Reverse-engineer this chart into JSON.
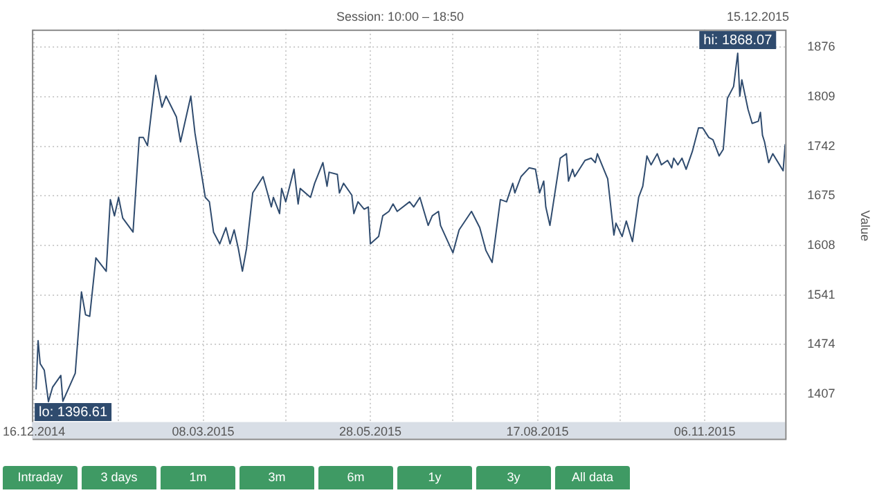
{
  "chart_data": {
    "type": "line",
    "title": "Session: 10:00 – 18:50",
    "subtitle": "15.12.2015",
    "ylabel": "Value",
    "x": [
      "2014-12-17",
      "2014-12-18",
      "2014-12-19",
      "2014-12-21",
      "2014-12-23",
      "2014-12-25",
      "2014-12-29",
      "2014-12-30",
      "2015-01-05",
      "2015-01-08",
      "2015-01-10",
      "2015-01-12",
      "2015-01-15",
      "2015-01-20",
      "2015-01-22",
      "2015-01-24",
      "2015-01-26",
      "2015-01-28",
      "2015-02-02",
      "2015-02-05",
      "2015-02-07",
      "2015-02-09",
      "2015-02-13",
      "2015-02-16",
      "2015-02-18",
      "2015-02-23",
      "2015-02-25",
      "2015-03-02",
      "2015-03-04",
      "2015-03-09",
      "2015-03-11",
      "2015-03-13",
      "2015-03-16",
      "2015-03-19",
      "2015-03-21",
      "2015-03-23",
      "2015-03-25",
      "2015-03-27",
      "2015-03-29",
      "2015-04-01",
      "2015-04-06",
      "2015-04-10",
      "2015-04-11",
      "2015-04-14",
      "2015-04-15",
      "2015-04-17",
      "2015-04-21",
      "2015-04-23",
      "2015-04-24",
      "2015-04-29",
      "2015-05-01",
      "2015-05-05",
      "2015-05-07",
      "2015-05-08",
      "2015-05-12",
      "2015-05-13",
      "2015-05-15",
      "2015-05-19",
      "2015-05-20",
      "2015-05-22",
      "2015-05-25",
      "2015-05-27",
      "2015-05-28",
      "2015-06-01",
      "2015-06-03",
      "2015-06-06",
      "2015-06-08",
      "2015-06-10",
      "2015-06-16",
      "2015-06-18",
      "2015-06-21",
      "2015-06-25",
      "2015-06-27",
      "2015-06-30",
      "2015-07-01",
      "2015-07-07",
      "2015-07-10",
      "2015-07-16",
      "2015-07-20",
      "2015-07-23",
      "2015-07-26",
      "2015-07-30",
      "2015-08-02",
      "2015-08-05",
      "2015-08-06",
      "2015-08-09",
      "2015-08-13",
      "2015-08-16",
      "2015-08-18",
      "2015-08-20",
      "2015-08-21",
      "2015-08-23",
      "2015-08-28",
      "2015-08-31",
      "2015-09-01",
      "2015-09-03",
      "2015-09-04",
      "2015-09-09",
      "2015-09-12",
      "2015-09-14",
      "2015-09-15",
      "2015-09-20",
      "2015-09-23",
      "2015-09-24",
      "2015-09-27",
      "2015-09-29",
      "2015-10-02",
      "2015-10-05",
      "2015-10-07",
      "2015-10-09",
      "2015-10-11",
      "2015-10-14",
      "2015-10-16",
      "2015-10-19",
      "2015-10-21",
      "2015-10-22",
      "2015-10-24",
      "2015-10-26",
      "2015-10-28",
      "2015-10-31",
      "2015-11-03",
      "2015-11-05",
      "2015-11-08",
      "2015-11-10",
      "2015-11-13",
      "2015-11-15",
      "2015-11-17",
      "2015-11-20",
      "2015-11-22",
      "2015-11-23",
      "2015-11-24",
      "2015-11-27",
      "2015-11-29",
      "2015-12-02",
      "2015-12-03",
      "2015-12-04",
      "2015-12-05",
      "2015-12-07",
      "2015-12-09",
      "2015-12-14",
      "2015-12-15"
    ],
    "series": [
      {
        "color": "#2f4b6e",
        "values": [
          1413,
          1479,
          1448,
          1439,
          1396.61,
          1416,
          1432,
          1397,
          1435,
          1545,
          1514,
          1512,
          1591,
          1573,
          1670,
          1648,
          1673,
          1645,
          1626,
          1754,
          1754,
          1743,
          1838,
          1795,
          1810,
          1782,
          1748,
          1810,
          1760,
          1673,
          1667,
          1626,
          1610,
          1632,
          1610,
          1629,
          1604,
          1573,
          1604,
          1679,
          1701,
          1660,
          1673,
          1651,
          1685,
          1667,
          1711,
          1664,
          1685,
          1673,
          1692,
          1720,
          1688,
          1707,
          1704,
          1679,
          1692,
          1676,
          1651,
          1667,
          1657,
          1660,
          1610,
          1620,
          1648,
          1654,
          1664,
          1654,
          1667,
          1660,
          1673,
          1635,
          1648,
          1654,
          1635,
          1598,
          1629,
          1654,
          1632,
          1601,
          1585,
          1670,
          1667,
          1692,
          1679,
          1701,
          1713,
          1711,
          1679,
          1695,
          1660,
          1635,
          1726,
          1732,
          1695,
          1711,
          1701,
          1723,
          1726,
          1720,
          1732,
          1698,
          1622,
          1638,
          1620,
          1641,
          1613,
          1673,
          1688,
          1729,
          1717,
          1732,
          1717,
          1723,
          1713,
          1726,
          1717,
          1726,
          1711,
          1735,
          1767,
          1767,
          1754,
          1751,
          1729,
          1738,
          1807,
          1823,
          1868.07,
          1810,
          1832,
          1792,
          1773,
          1776,
          1788,
          1757,
          1748,
          1720,
          1732,
          1709,
          1745
        ]
      }
    ],
    "xlim": [
      "2014-12-15",
      "2015-12-15"
    ],
    "xticks": [
      {
        "value": "2014-12-16",
        "label": "16.12.2014"
      },
      {
        "value": "2015-01-26",
        "label": null
      },
      {
        "value": "2015-03-08",
        "label": "08.03.2015"
      },
      {
        "value": "2015-04-17",
        "label": null
      },
      {
        "value": "2015-05-28",
        "label": "28.05.2015"
      },
      {
        "value": "2015-07-07",
        "label": null
      },
      {
        "value": "2015-08-17",
        "label": "17.08.2015"
      },
      {
        "value": "2015-09-26",
        "label": null
      },
      {
        "value": "2015-11-06",
        "label": "06.11.2015"
      }
    ],
    "ylim": [
      1369,
      1900
    ],
    "yticks": [
      1407,
      1474,
      1541,
      1608,
      1675,
      1742,
      1809,
      1876
    ],
    "grid": true,
    "legend": false,
    "marker": "none",
    "line_style": "solid",
    "annotations": [
      {
        "text": "lo: 1396.61",
        "x": "2014-12-23",
        "y": 1396.61
      },
      {
        "text": "hi: 1868.07",
        "x": "2015-11-22",
        "y": 1868.07
      },
      "Intraday",
      "3 days",
      "1m",
      "3m",
      "6m",
      "1y",
      "3y",
      "All data"
    ]
  }
}
